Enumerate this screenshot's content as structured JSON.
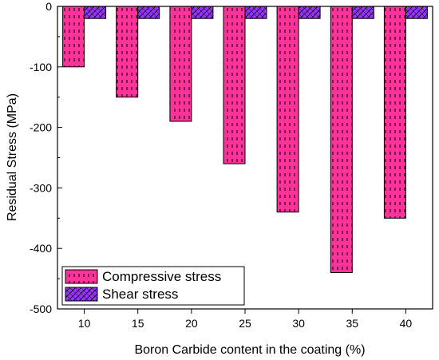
{
  "chart_data": {
    "type": "bar",
    "title": "",
    "xlabel": "Boron Carbide content in the coating (%)",
    "ylabel": "Residual Stress (MPa)",
    "categories": [
      "10",
      "15",
      "20",
      "25",
      "30",
      "35",
      "40"
    ],
    "ylim": [
      -500,
      0
    ],
    "yticks": [
      0,
      -100,
      -200,
      -300,
      -400,
      -500
    ],
    "series": [
      {
        "name": "Compressive stress",
        "values": [
          -100,
          -150,
          -190,
          -260,
          -340,
          -440,
          -350
        ],
        "color": "#ff3399",
        "pattern": "dashed-vertical"
      },
      {
        "name": "Shear stress",
        "values": [
          -20,
          -20,
          -20,
          -20,
          -20,
          -20,
          -20
        ],
        "color": "#9933ff",
        "pattern": "crosshatch"
      }
    ],
    "legend_position": "bottom-left",
    "grid": false
  }
}
